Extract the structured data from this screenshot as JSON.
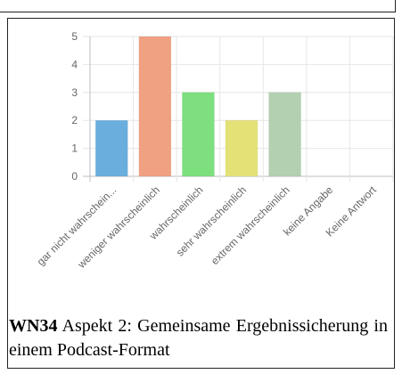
{
  "caption": {
    "label": "WN34",
    "text": "Aspekt 2: Gemeinsame Ergebnissicherung in einem Podcast-Format"
  },
  "chart_data": {
    "type": "bar",
    "categories": [
      "gar nicht wahrschein...",
      "weniger wahrscheinlich",
      "wahrscheinlich",
      "sehr wahrscheinlich",
      "extrem wahrscheinlich",
      "keine Angabe",
      "Keine Antwort"
    ],
    "values": [
      2,
      5,
      3,
      2,
      3,
      0,
      0
    ],
    "colors": [
      "#6aaede",
      "#f0a182",
      "#7ddf7e",
      "#e4e276",
      "#b3d0b0",
      "#cccccc",
      "#cccccc"
    ],
    "title": "",
    "xlabel": "",
    "ylabel": "",
    "ylim": [
      0,
      5
    ],
    "yticks": [
      0,
      1,
      2,
      3,
      4,
      5
    ],
    "grid": true,
    "legend": "none"
  }
}
